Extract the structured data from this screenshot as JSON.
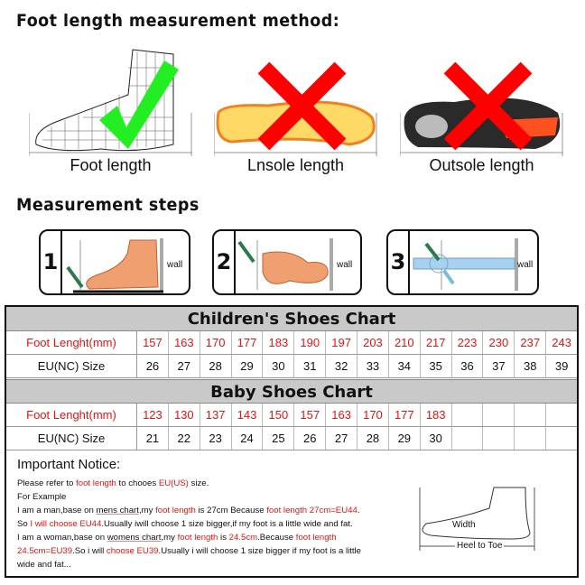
{
  "method": {
    "title": "Foot length measurement method:",
    "panels": [
      {
        "label": "Foot length",
        "mark": "check-icon"
      },
      {
        "label": "Lnsole length",
        "mark": "cross-icon"
      },
      {
        "label": "Outsole length",
        "mark": "cross-icon"
      }
    ]
  },
  "steps": {
    "title": "Measurement steps",
    "items": [
      {
        "num": "1",
        "wall": "wall"
      },
      {
        "num": "2",
        "wall": "wall"
      },
      {
        "num": "3",
        "wall": "wall"
      }
    ]
  },
  "children_chart": {
    "title": "Children's Shoes Chart",
    "foot_label": "Foot Lenght(mm)",
    "size_label": "EU(NC) Size",
    "foot": [
      "157",
      "163",
      "170",
      "177",
      "183",
      "190",
      "197",
      "203",
      "210",
      "217",
      "223",
      "230",
      "237",
      "243"
    ],
    "size": [
      "26",
      "27",
      "28",
      "29",
      "30",
      "31",
      "32",
      "33",
      "34",
      "35",
      "36",
      "37",
      "38",
      "39"
    ]
  },
  "baby_chart": {
    "title": "Baby Shoes Chart",
    "foot_label": "Foot Lenght(mm)",
    "size_label": "EU(NC) Size",
    "foot": [
      "123",
      "130",
      "137",
      "143",
      "150",
      "157",
      "163",
      "170",
      "177",
      "183",
      "",
      "",
      "",
      ""
    ],
    "size": [
      "21",
      "22",
      "23",
      "24",
      "25",
      "26",
      "27",
      "28",
      "29",
      "30",
      "",
      "",
      "",
      ""
    ]
  },
  "notice": {
    "title": "Important Notice:",
    "lines": [
      [
        {
          "t": "Please refer to "
        },
        {
          "t": "foot length",
          "r": 1
        },
        {
          "t": " to chooes "
        },
        {
          "t": "EU(US)",
          "r": 1
        },
        {
          "t": " size."
        }
      ],
      [
        {
          "t": "For Example"
        }
      ],
      [
        {
          "t": "I am a man,base on "
        },
        {
          "t": "mens chart",
          "u": 1
        },
        {
          "t": ",my "
        },
        {
          "t": "foot length",
          "r": 1
        },
        {
          "t": " is 27cm Because "
        },
        {
          "t": "foot length 27cm=EU44",
          "r": 1
        },
        {
          "t": "."
        }
      ],
      [
        {
          "t": "So "
        },
        {
          "t": "I will choose EU44",
          "r": 1
        },
        {
          "t": ".Usually iwill choose 1 size bigger,if my foot is a little wide and fat."
        }
      ],
      [
        {
          "t": "I am a woman,base on "
        },
        {
          "t": "womens chart",
          "u": 1
        },
        {
          "t": ",my "
        },
        {
          "t": "foot length",
          "r": 1
        },
        {
          "t": " is "
        },
        {
          "t": "24.5cm",
          "r": 1
        },
        {
          "t": ".Because "
        },
        {
          "t": "foot length",
          "r": 1
        }
      ],
      [
        {
          "t": "24.5cm=EU39",
          "r": 1
        },
        {
          "t": ".So i will "
        },
        {
          "t": "choose EU39",
          "r": 1
        },
        {
          "t": ".Usually i will choose 1 size bigger if my foot is a little"
        }
      ],
      [
        {
          "t": "wide and fat..."
        }
      ]
    ]
  },
  "diagram": {
    "width_label": "Width",
    "length_label": "Heel to Toe"
  },
  "colors": {
    "red": "#f01010",
    "green": "#22ee22",
    "header_gray": "#c9c9c9"
  }
}
